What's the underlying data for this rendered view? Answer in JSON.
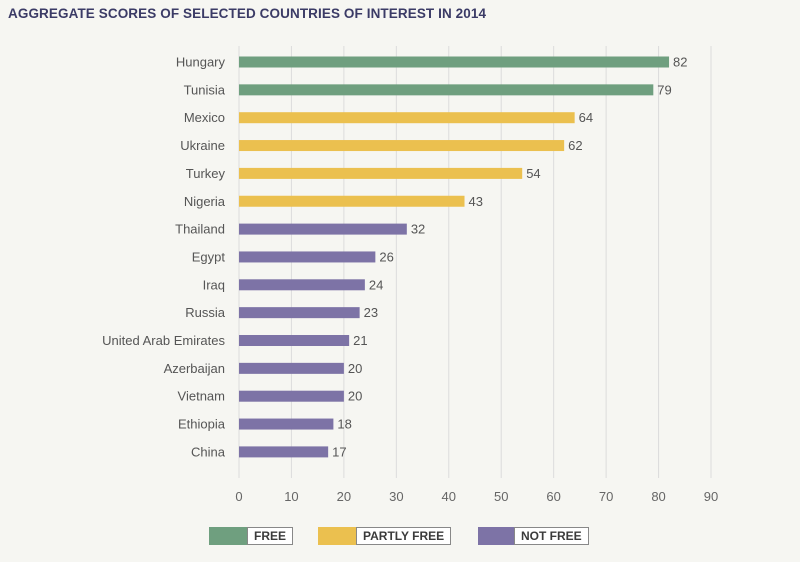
{
  "title": "AGGREGATE SCORES OF SELECTED COUNTRIES OF INTEREST IN 2014",
  "colors": {
    "free": "#6f9f7f",
    "partly_free": "#ebc04f",
    "not_free": "#7d73a6",
    "grid": "#dcdcdc"
  },
  "chart_data": {
    "type": "bar",
    "orientation": "horizontal",
    "title": "AGGREGATE SCORES OF SELECTED COUNTRIES OF INTEREST IN 2014",
    "xlabel": "",
    "ylabel": "",
    "xlim": [
      0,
      90
    ],
    "x_ticks": [
      0,
      10,
      20,
      30,
      40,
      50,
      60,
      70,
      80,
      90
    ],
    "grid": true,
    "legend_position": "bottom-center",
    "categories": [
      "Hungary",
      "Tunisia",
      "Mexico",
      "Ukraine",
      "Turkey",
      "Nigeria",
      "Thailand",
      "Egypt",
      "Iraq",
      "Russia",
      "United Arab Emirates",
      "Azerbaijan",
      "Vietnam",
      "Ethiopia",
      "China"
    ],
    "values": [
      82,
      79,
      64,
      62,
      54,
      43,
      32,
      26,
      24,
      23,
      21,
      20,
      20,
      18,
      17
    ],
    "status": [
      "free",
      "free",
      "partly_free",
      "partly_free",
      "partly_free",
      "partly_free",
      "not_free",
      "not_free",
      "not_free",
      "not_free",
      "not_free",
      "not_free",
      "not_free",
      "not_free",
      "not_free"
    ],
    "legend": [
      {
        "key": "free",
        "label": "FREE"
      },
      {
        "key": "partly_free",
        "label": "PARTLY FREE"
      },
      {
        "key": "not_free",
        "label": "NOT FREE"
      }
    ]
  }
}
